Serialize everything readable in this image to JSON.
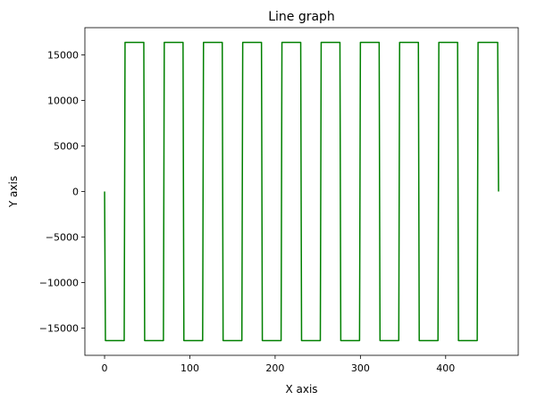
{
  "chart_data": {
    "type": "line",
    "title": "Line graph",
    "xlabel": "X axis",
    "ylabel": "Y axis",
    "xlim": [
      -23.1,
      485.1
    ],
    "ylim": [
      -18000,
      18000
    ],
    "xticks": [
      0,
      100,
      200,
      300,
      400
    ],
    "yticks": [
      -15000,
      -10000,
      -5000,
      0,
      5000,
      10000,
      15000
    ],
    "grid": false,
    "legend": "none",
    "series": [
      {
        "color": "#008000",
        "x": [
          0,
          1,
          23,
          24,
          46,
          47,
          69,
          70,
          92,
          93,
          115,
          116,
          138,
          139,
          161,
          162,
          184,
          185,
          207,
          208,
          230,
          231,
          253,
          254,
          276,
          277,
          299,
          300,
          322,
          323,
          345,
          346,
          368,
          369,
          391,
          392,
          414,
          415,
          437,
          438,
          460,
          461,
          462
        ],
        "y": [
          0,
          -16384,
          -16384,
          16384,
          16384,
          -16384,
          -16384,
          16384,
          16384,
          -16384,
          -16384,
          16384,
          16384,
          -16384,
          -16384,
          16384,
          16384,
          -16384,
          -16384,
          16384,
          16384,
          -16384,
          -16384,
          16384,
          16384,
          -16384,
          -16384,
          16384,
          16384,
          -16384,
          -16384,
          16384,
          16384,
          -16384,
          -16384,
          16384,
          16384,
          -16384,
          -16384,
          16384,
          16384,
          16384,
          0
        ]
      }
    ]
  }
}
